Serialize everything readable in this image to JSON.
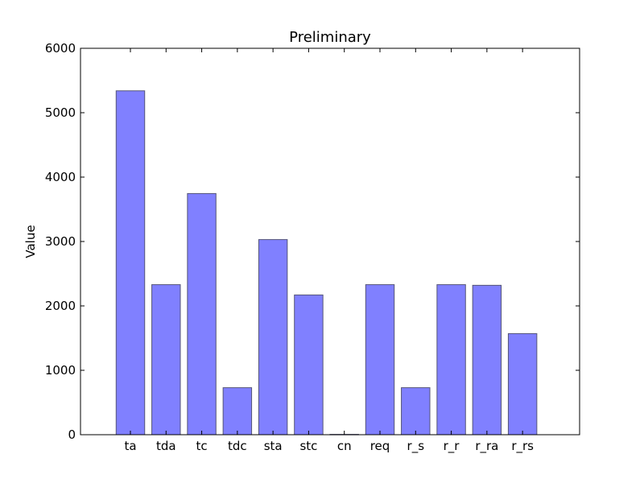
{
  "chart_data": {
    "type": "bar",
    "title": "Preliminary",
    "xlabel": "",
    "ylabel": "Value",
    "categories": [
      "ta",
      "tda",
      "tc",
      "tdc",
      "sta",
      "stc",
      "cn",
      "req",
      "r_s",
      "r_r",
      "r_ra",
      "r_rs"
    ],
    "values": [
      5340,
      2330,
      3745,
      730,
      3030,
      2170,
      5,
      2330,
      730,
      2330,
      2320,
      1570
    ],
    "ylim": [
      0,
      6000
    ],
    "yticks": [
      0,
      1000,
      2000,
      3000,
      4000,
      5000,
      6000
    ],
    "grid": false,
    "legend": "none",
    "bar_color": "#8080ff",
    "bar_edge_color": "#555577"
  }
}
